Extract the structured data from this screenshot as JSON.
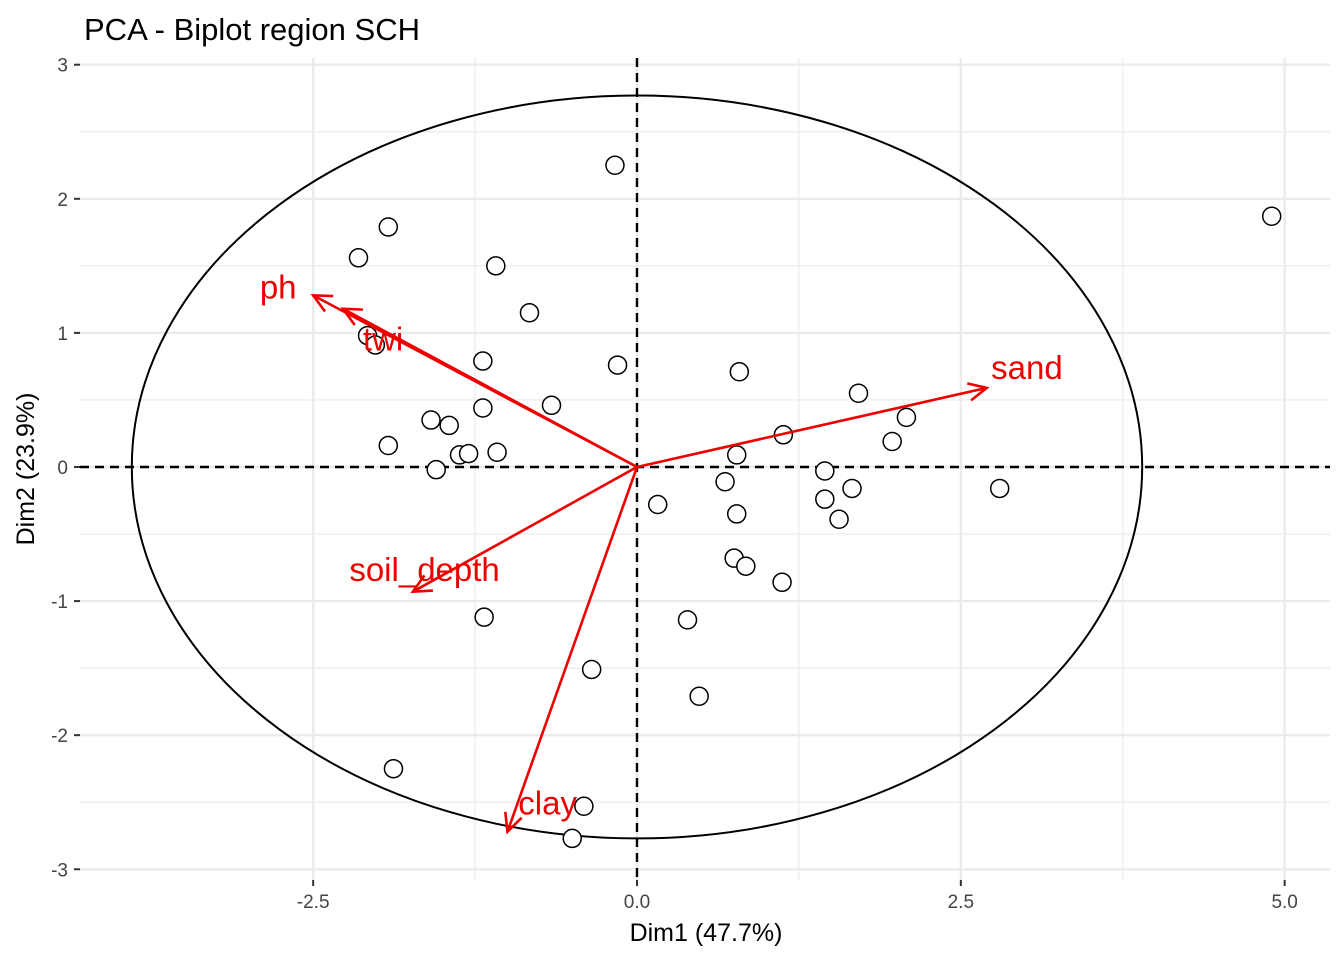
{
  "chart_data": {
    "type": "scatter",
    "title": "PCA - Biplot region SCH",
    "xlabel": "Dim1 (47.7%)",
    "ylabel": "Dim2 (23.9%)",
    "xlim": [
      -4.3,
      5.35
    ],
    "ylim": [
      -3.08,
      3.05
    ],
    "x_ticks": [
      -2.5,
      0.0,
      2.5,
      5.0
    ],
    "x_tick_labels": [
      "-2.5",
      "0.0",
      "2.5",
      "5.0"
    ],
    "y_ticks": [
      -3,
      -2,
      -1,
      0,
      1,
      2,
      3
    ],
    "y_tick_labels": [
      "-3",
      "-2",
      "-1",
      "0",
      "1",
      "2",
      "3"
    ],
    "grid": true,
    "reference_lines": {
      "x": 0,
      "y": 0,
      "style": "dashed"
    },
    "ellipse": {
      "rx": 3.9,
      "ry": 2.77
    },
    "points": [
      {
        "x": -0.17,
        "y": 2.25
      },
      {
        "x": 4.9,
        "y": 1.87
      },
      {
        "x": -1.92,
        "y": 1.79
      },
      {
        "x": -2.15,
        "y": 1.56
      },
      {
        "x": -1.09,
        "y": 1.5
      },
      {
        "x": -0.83,
        "y": 1.15
      },
      {
        "x": -2.08,
        "y": 0.98
      },
      {
        "x": -2.02,
        "y": 0.91
      },
      {
        "x": -1.19,
        "y": 0.79
      },
      {
        "x": -0.15,
        "y": 0.76
      },
      {
        "x": 0.79,
        "y": 0.71
      },
      {
        "x": 1.71,
        "y": 0.55
      },
      {
        "x": -0.66,
        "y": 0.46
      },
      {
        "x": -1.19,
        "y": 0.44
      },
      {
        "x": 2.08,
        "y": 0.37
      },
      {
        "x": -1.59,
        "y": 0.35
      },
      {
        "x": -1.45,
        "y": 0.31
      },
      {
        "x": 1.13,
        "y": 0.24
      },
      {
        "x": 1.97,
        "y": 0.19
      },
      {
        "x": -1.92,
        "y": 0.16
      },
      {
        "x": -1.08,
        "y": 0.11
      },
      {
        "x": -1.37,
        "y": 0.09
      },
      {
        "x": -1.3,
        "y": 0.1
      },
      {
        "x": 0.77,
        "y": 0.09
      },
      {
        "x": -1.55,
        "y": -0.02
      },
      {
        "x": 1.45,
        "y": -0.03
      },
      {
        "x": 0.68,
        "y": -0.11
      },
      {
        "x": 1.66,
        "y": -0.16
      },
      {
        "x": 2.8,
        "y": -0.16
      },
      {
        "x": 1.45,
        "y": -0.24
      },
      {
        "x": 0.16,
        "y": -0.28
      },
      {
        "x": 0.77,
        "y": -0.35
      },
      {
        "x": 1.56,
        "y": -0.39
      },
      {
        "x": 0.75,
        "y": -0.68
      },
      {
        "x": 0.84,
        "y": -0.74
      },
      {
        "x": 1.12,
        "y": -0.86
      },
      {
        "x": -1.18,
        "y": -1.12
      },
      {
        "x": 0.39,
        "y": -1.14
      },
      {
        "x": -0.35,
        "y": -1.51
      },
      {
        "x": 0.48,
        "y": -1.71
      },
      {
        "x": -1.88,
        "y": -2.25
      },
      {
        "x": -0.41,
        "y": -2.53
      },
      {
        "x": -0.5,
        "y": -2.77
      }
    ],
    "variables": [
      {
        "name": "ph",
        "x": -2.5,
        "y": 1.28,
        "label_x": -2.77,
        "label_y": 1.34
      },
      {
        "name": "twi",
        "x": -2.27,
        "y": 1.18,
        "label_x": -1.96,
        "label_y": 0.95
      },
      {
        "name": "sand",
        "x": 2.7,
        "y": 0.59,
        "label_x": 3.01,
        "label_y": 0.74
      },
      {
        "name": "soil_depth",
        "x": -1.73,
        "y": -0.93,
        "label_x": -1.64,
        "label_y": -0.77
      },
      {
        "name": "clay",
        "x": -1.0,
        "y": -2.72,
        "label_x": -0.69,
        "label_y": -2.51
      }
    ],
    "colors": {
      "variable": "#ee0000",
      "ellipse": "#000000",
      "grid": "#ebebeb"
    }
  }
}
